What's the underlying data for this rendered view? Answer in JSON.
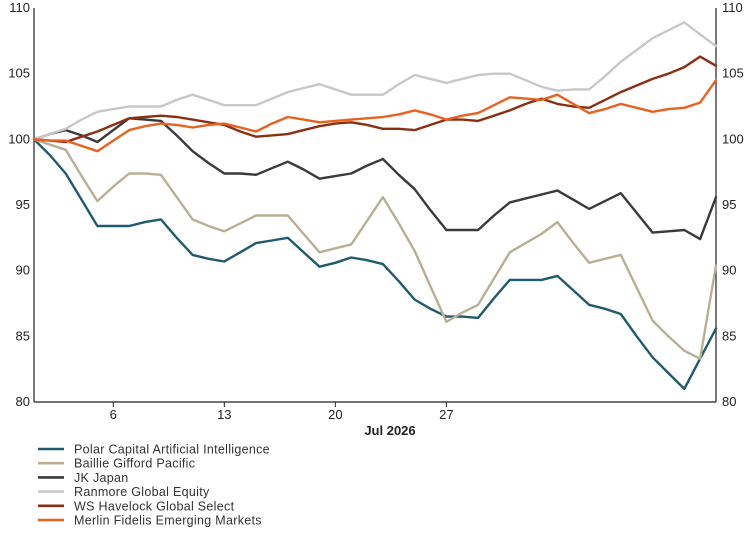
{
  "chart_data": {
    "type": "line",
    "title": "",
    "xlabel": "Jul 2026",
    "ylabel": "",
    "ylim": [
      80,
      110
    ],
    "yticks": [
      80,
      85,
      90,
      95,
      100,
      105,
      110
    ],
    "grid": false,
    "legend_position": "bottom-left",
    "x": [
      "2026-07-01",
      "2026-07-02",
      "2026-07-03",
      "2026-07-04",
      "2026-07-05",
      "2026-07-06",
      "2026-07-07",
      "2026-07-08",
      "2026-07-09",
      "2026-07-10",
      "2026-07-11",
      "2026-07-12",
      "2026-07-13",
      "2026-07-14",
      "2026-07-15",
      "2026-07-16",
      "2026-07-17",
      "2026-07-18",
      "2026-07-19",
      "2026-07-20",
      "2026-07-21",
      "2026-07-22",
      "2026-07-23",
      "2026-07-24",
      "2026-07-25",
      "2026-07-26",
      "2026-07-27",
      "2026-07-28",
      "2026-07-29",
      "2026-07-30",
      "2026-07-31",
      "2026-08-01",
      "2026-08-02"
    ],
    "xticks": [
      {
        "date": "2026-07-06",
        "label": "6"
      },
      {
        "date": "2026-07-13",
        "label": "13"
      },
      {
        "date": "2026-07-20",
        "label": "20"
      },
      {
        "date": "2026-07-27",
        "label": "27"
      }
    ],
    "series": [
      {
        "name": "Polar Capital Artificial Intelligence",
        "color": "#1f5a6e",
        "values": [
          100,
          98.8,
          97.4,
          95.4,
          93.4,
          93.4,
          93.4,
          93.7,
          93.9,
          92.5,
          91.2,
          90.9,
          90.7,
          91.4,
          92.1,
          92.3,
          92.5,
          91.4,
          90.3,
          90.6,
          91.0,
          90.8,
          90.5,
          89.2,
          87.8,
          87.1,
          86.5,
          86.5,
          86.4,
          87.9,
          89.3,
          89.3,
          89.3
        ]
      },
      {
        "name": "Baillie Gifford Pacific",
        "color": "#b9b094",
        "values": [
          100,
          99.6,
          99.2,
          97.2,
          95.3,
          96.4,
          97.4,
          97.4,
          97.3,
          95.6,
          93.9,
          93.4,
          93.0,
          93.6,
          94.2,
          94.2,
          94.2,
          92.8,
          91.4,
          91.7,
          92.0,
          93.8,
          95.6,
          93.6,
          91.5,
          88.8,
          86.1,
          86.8,
          87.4,
          89.4,
          91.4,
          92.1,
          92.8
        ]
      },
      {
        "name": "JK Japan",
        "color": "#3a3a3a",
        "values": [
          100,
          100.4,
          100.7,
          100.3,
          99.8,
          100.7,
          101.6,
          101.5,
          101.4,
          100.3,
          99.1,
          98.2,
          97.4,
          97.4,
          97.3,
          97.8,
          98.3,
          97.7,
          97.0,
          97.2,
          97.4,
          98.0,
          98.5,
          97.3,
          96.2,
          94.6,
          93.1,
          93.1,
          93.1,
          94.2,
          95.2,
          95.5,
          95.8
        ]
      },
      {
        "name": "Ranmore Global Equity",
        "color": "#c8c8c8",
        "values": [
          100,
          100.4,
          100.8,
          101.5,
          102.1,
          102.3,
          102.5,
          102.5,
          102.5,
          103.0,
          103.4,
          103.0,
          102.6,
          102.6,
          102.6,
          103.1,
          103.6,
          103.9,
          104.2,
          103.8,
          103.4,
          103.4,
          103.4,
          104.2,
          104.9,
          104.6,
          104.3,
          104.6,
          104.9,
          105.0,
          105.0,
          104.5,
          104.0
        ]
      },
      {
        "name": "WS Havelock Global Select",
        "color": "#8b2f14",
        "values": [
          100,
          99.9,
          99.8,
          100.2,
          100.6,
          101.1,
          101.6,
          101.7,
          101.8,
          101.7,
          101.5,
          101.3,
          101.1,
          100.6,
          100.2,
          100.3,
          100.4,
          100.7,
          101.0,
          101.2,
          101.3,
          101.1,
          100.8,
          100.8,
          100.7,
          101.1,
          101.5,
          101.5,
          101.4,
          101.8,
          102.2,
          102.7,
          103.1
        ]
      },
      {
        "name": "Merlin Fidelis Emerging Markets",
        "color": "#e8621e",
        "values": [
          100,
          99.9,
          99.9,
          99.5,
          99.1,
          99.9,
          100.7,
          101.0,
          101.2,
          101.1,
          100.9,
          101.1,
          101.2,
          100.9,
          100.6,
          101.2,
          101.7,
          101.5,
          101.3,
          101.4,
          101.5,
          101.6,
          101.7,
          101.9,
          102.2,
          101.9,
          101.5,
          101.8,
          102.0,
          102.6,
          103.2,
          103.1,
          103.0
        ]
      }
    ],
    "tail": {
      "x": [
        "2026-08-03",
        "2026-08-04",
        "2026-08-05",
        "2026-08-06",
        "2026-08-07",
        "2026-08-08",
        "2026-08-09",
        "2026-08-10",
        "2026-08-11",
        "2026-08-12",
        "2026-08-13"
      ],
      "values": [
        [
          89.6,
          88.5,
          87.4,
          87.1,
          86.7,
          85.0,
          83.4,
          82.2,
          81.0,
          83.3,
          85.6
        ],
        [
          93.7,
          92.1,
          90.6,
          90.9,
          91.2,
          88.7,
          86.2,
          85.0,
          83.9,
          83.3,
          90.4
        ],
        [
          96.1,
          95.4,
          94.7,
          95.3,
          95.9,
          94.4,
          92.9,
          93.0,
          93.1,
          92.4,
          95.6
        ],
        [
          103.7,
          103.8,
          103.8,
          104.8,
          105.9,
          106.8,
          107.7,
          108.3,
          108.9,
          108.0,
          107.1
        ],
        [
          102.7,
          102.5,
          102.4,
          103.0,
          103.6,
          104.1,
          104.6,
          105.0,
          105.5,
          106.3,
          105.6
        ],
        [
          103.4,
          102.7,
          102.0,
          102.3,
          102.7,
          102.4,
          102.1,
          102.3,
          102.4,
          102.8,
          104.5
        ]
      ]
    }
  }
}
